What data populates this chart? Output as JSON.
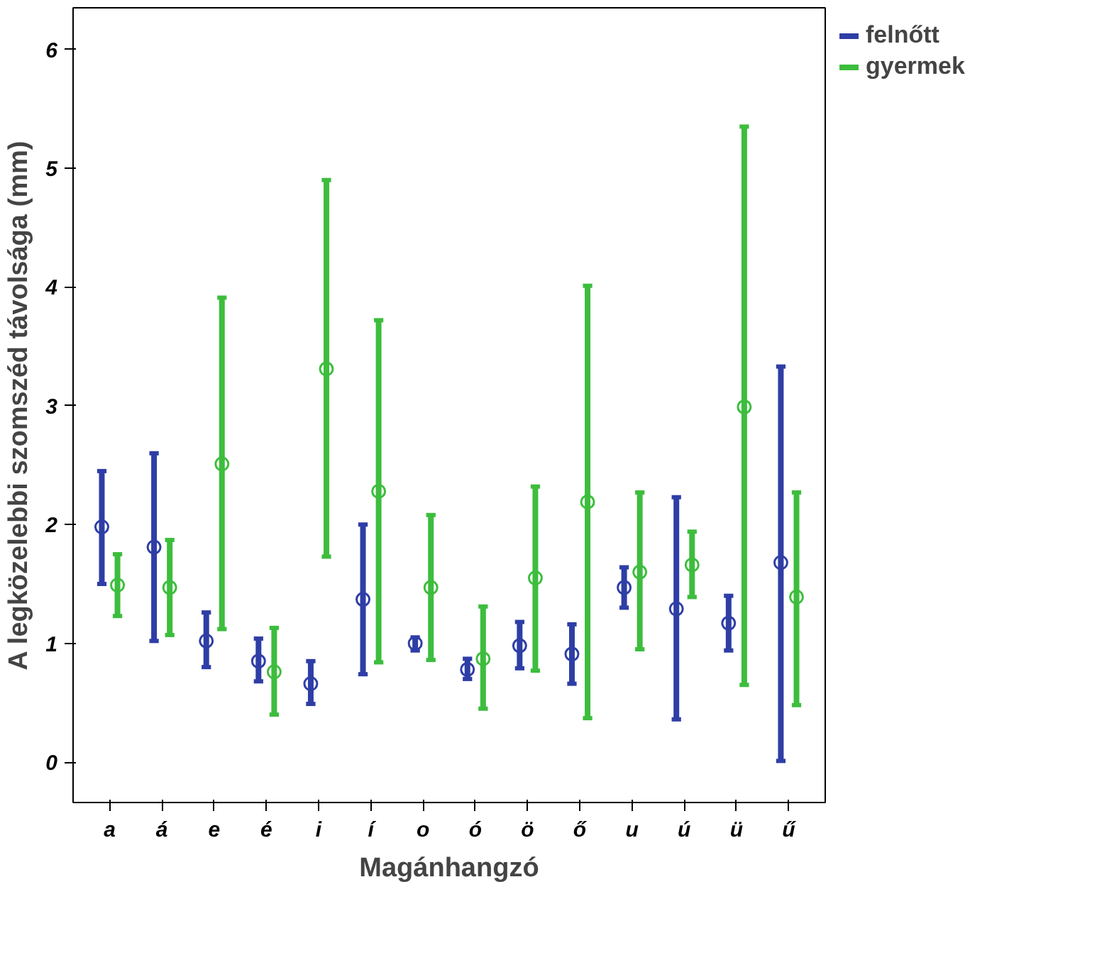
{
  "chart_data": {
    "type": "scatter",
    "xlabel": "Magánhangzó",
    "ylabel": "A legközelebbi szomszéd távolsága (mm)",
    "categories": [
      "a",
      "á",
      "e",
      "é",
      "i",
      "í",
      "o",
      "ó",
      "ö",
      "ő",
      "u",
      "ú",
      "ü",
      "ű"
    ],
    "ylim": [
      -0.34,
      6.35
    ],
    "yticks": [
      0,
      1,
      2,
      3,
      4,
      5,
      6
    ],
    "grid": false,
    "legend": "top right",
    "marker": "circle",
    "series": [
      {
        "name": "felnőtt",
        "color": "#2e3ea6",
        "values": [
          1.98,
          1.81,
          1.02,
          0.85,
          0.66,
          1.37,
          1.0,
          0.78,
          0.98,
          0.91,
          1.47,
          1.29,
          1.17,
          1.68
        ],
        "errors": [
          [
            1.5,
            2.45
          ],
          [
            1.02,
            2.6
          ],
          [
            0.8,
            1.26
          ],
          [
            0.68,
            1.04
          ],
          [
            0.49,
            0.85
          ],
          [
            0.74,
            2.0
          ],
          [
            0.94,
            1.05
          ],
          [
            0.7,
            0.87
          ],
          [
            0.79,
            1.18
          ],
          [
            0.66,
            1.16
          ],
          [
            1.3,
            1.64
          ],
          [
            0.36,
            2.23
          ],
          [
            0.94,
            1.4
          ],
          [
            0.01,
            3.33
          ]
        ]
      },
      {
        "name": "gyermek",
        "color": "#3dbd3d",
        "values": [
          1.49,
          1.47,
          2.51,
          0.76,
          3.31,
          2.28,
          1.47,
          0.87,
          1.55,
          2.19,
          1.6,
          1.66,
          2.99,
          1.39
        ],
        "errors": [
          [
            1.23,
            1.75
          ],
          [
            1.07,
            1.87
          ],
          [
            1.12,
            3.91
          ],
          [
            0.4,
            1.13
          ],
          [
            1.73,
            4.9
          ],
          [
            0.84,
            3.72
          ],
          [
            0.86,
            2.08
          ],
          [
            0.45,
            1.31
          ],
          [
            0.77,
            2.32
          ],
          [
            0.37,
            4.01
          ],
          [
            0.95,
            2.27
          ],
          [
            1.39,
            1.94
          ],
          [
            0.65,
            5.35
          ],
          [
            0.48,
            2.27
          ]
        ]
      }
    ]
  }
}
